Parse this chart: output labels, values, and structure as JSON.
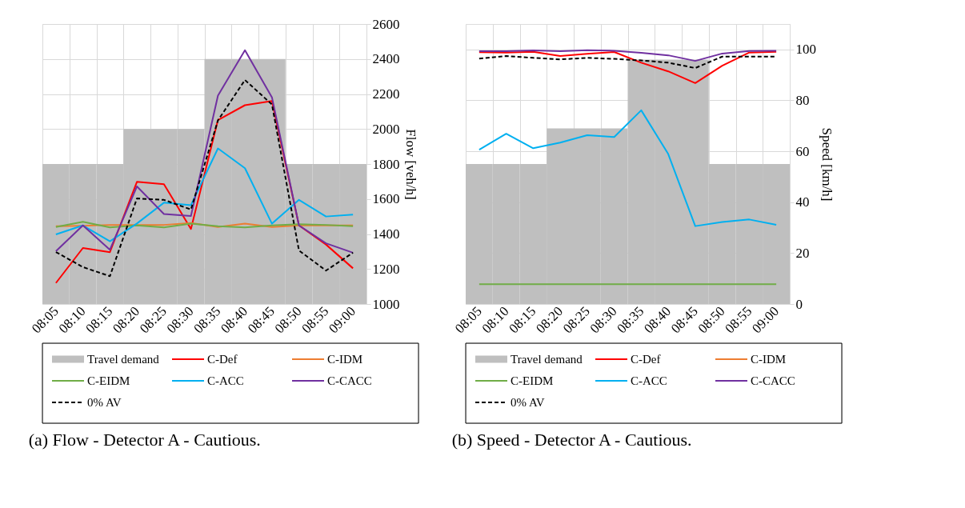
{
  "chart_data": [
    {
      "type": "line",
      "title": "(a) Flow - Detector A - Cautious.",
      "ylabel": "Flow [veh/h]",
      "ylim": [
        1000,
        2600
      ],
      "yticks": [
        1000,
        1200,
        1400,
        1600,
        1800,
        2000,
        2200,
        2400,
        2600
      ],
      "grid": true,
      "legend": "bottom",
      "categories": [
        "08:05",
        "08:10",
        "08:15",
        "08:20",
        "08:25",
        "08:30",
        "08:35",
        "08:40",
        "08:45",
        "08:50",
        "08:55",
        "09:00"
      ],
      "series": [
        {
          "name": "Travel demand",
          "type": "bar",
          "color": "#bfbfbf",
          "values": [
            1800,
            1800,
            1800,
            2000,
            2000,
            2000,
            2400,
            2400,
            2400,
            1800,
            1800,
            1800
          ]
        },
        {
          "name": "C-Def",
          "color": "#ff0000",
          "values": [
            1120,
            1320,
            1296,
            1698,
            1685,
            1429,
            2051,
            2136,
            2160,
            1449,
            1340,
            1204
          ]
        },
        {
          "name": "C-IDM",
          "color": "#ed7d31",
          "values": [
            1445,
            1447,
            1452,
            1452,
            1452,
            1463,
            1440,
            1459,
            1440,
            1449,
            1449,
            1449
          ]
        },
        {
          "name": "C-EIDM",
          "color": "#70ad47",
          "values": [
            1440,
            1470,
            1438,
            1449,
            1438,
            1459,
            1445,
            1438,
            1449,
            1456,
            1452,
            1445
          ]
        },
        {
          "name": "C-ACC",
          "color": "#00b0f0",
          "values": [
            1398,
            1449,
            1358,
            1460,
            1579,
            1565,
            1889,
            1776,
            1459,
            1595,
            1500,
            1511
          ]
        },
        {
          "name": "C-CACC",
          "color": "#7030a0",
          "values": [
            1302,
            1449,
            1310,
            1672,
            1514,
            1503,
            2191,
            2450,
            2181,
            1449,
            1347,
            1293
          ]
        },
        {
          "name": "0% AV",
          "color": "#000000",
          "line_style": "dashed",
          "values": [
            1297,
            1211,
            1159,
            1603,
            1595,
            1540,
            2049,
            2280,
            2140,
            1306,
            1191,
            1293
          ]
        }
      ]
    },
    {
      "type": "line",
      "title": "(b) Speed - Detector A - Cautious.",
      "ylabel": "Speed [km/h]",
      "ylim": [
        0,
        110
      ],
      "yticks": [
        0,
        20,
        40,
        60,
        80,
        100
      ],
      "grid": true,
      "legend": "bottom",
      "categories": [
        "08:05",
        "08:10",
        "08:15",
        "08:20",
        "08:25",
        "08:30",
        "08:35",
        "08:40",
        "08:45",
        "08:50",
        "08:55",
        "09:00"
      ],
      "series": [
        {
          "name": "Travel demand",
          "type": "bar",
          "color": "#bfbfbf",
          "values": [
            55,
            55,
            55,
            69,
            69,
            69,
            96,
            96,
            96,
            55,
            55,
            55
          ]
        },
        {
          "name": "C-Def",
          "color": "#ff0000",
          "values": [
            98.9,
            98.8,
            99.1,
            97.4,
            98.3,
            99.0,
            94.8,
            91.4,
            86.8,
            93.6,
            98.8,
            99.1
          ]
        },
        {
          "name": "C-IDM",
          "color": "#ed7d31",
          "values": [
            null,
            null,
            null,
            null,
            null,
            null,
            null,
            null,
            null,
            null,
            null,
            null
          ]
        },
        {
          "name": "C-EIDM",
          "color": "#70ad47",
          "values": [
            7.8,
            7.8,
            7.8,
            7.8,
            7.8,
            7.8,
            7.8,
            7.8,
            7.8,
            7.8,
            7.8,
            7.8
          ]
        },
        {
          "name": "C-ACC",
          "color": "#00b0f0",
          "values": [
            60.6,
            66.9,
            61.2,
            63.4,
            66.3,
            65.6,
            76.1,
            58.9,
            30.6,
            32.2,
            33.2,
            31.1
          ]
        },
        {
          "name": "C-CACC",
          "color": "#7030a0",
          "values": [
            99.3,
            99.3,
            99.6,
            99.3,
            99.7,
            99.5,
            98.7,
            97.7,
            95.5,
            98.4,
            99.4,
            99.5
          ]
        },
        {
          "name": "0% AV",
          "color": "#000000",
          "line_style": "dashed",
          "values": [
            96.4,
            97.4,
            96.7,
            96.1,
            96.7,
            96.3,
            95.7,
            94.8,
            92.7,
            97.2,
            97.2,
            97.2
          ]
        }
      ]
    }
  ]
}
